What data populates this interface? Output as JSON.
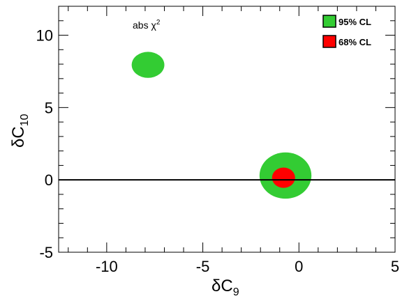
{
  "chart_data": {
    "type": "contour",
    "xlabel": "δC",
    "xlabel_sub": "9",
    "ylabel": "δC",
    "ylabel_sub": "10",
    "xlim": [
      -12.5,
      5
    ],
    "ylim": [
      -5,
      12
    ],
    "xticks": [
      -10,
      -5,
      0,
      5
    ],
    "yticks": [
      -5,
      0,
      5,
      10
    ],
    "xtick_labels": [
      "-10",
      "-5",
      "0",
      "5"
    ],
    "ytick_labels": [
      "-5",
      "0",
      "5",
      "10"
    ],
    "annotation": {
      "text": "abs χ",
      "sup": "2"
    },
    "reference_line_y": 0,
    "legend_position": "top-right",
    "grid": false,
    "series": [
      {
        "name": "95% CL",
        "color": "#33cc33",
        "regions": [
          {
            "center": [
              -7.85,
              7.95
            ],
            "semi_axes": [
              0.85,
              0.9
            ]
          },
          {
            "center": [
              -0.7,
              0.3
            ],
            "semi_axes": [
              1.35,
              1.6
            ]
          }
        ]
      },
      {
        "name": "68% CL",
        "color": "#ff0000",
        "regions": [
          {
            "center": [
              -0.8,
              0.15
            ],
            "semi_axes": [
              0.6,
              0.7
            ]
          }
        ]
      }
    ]
  }
}
